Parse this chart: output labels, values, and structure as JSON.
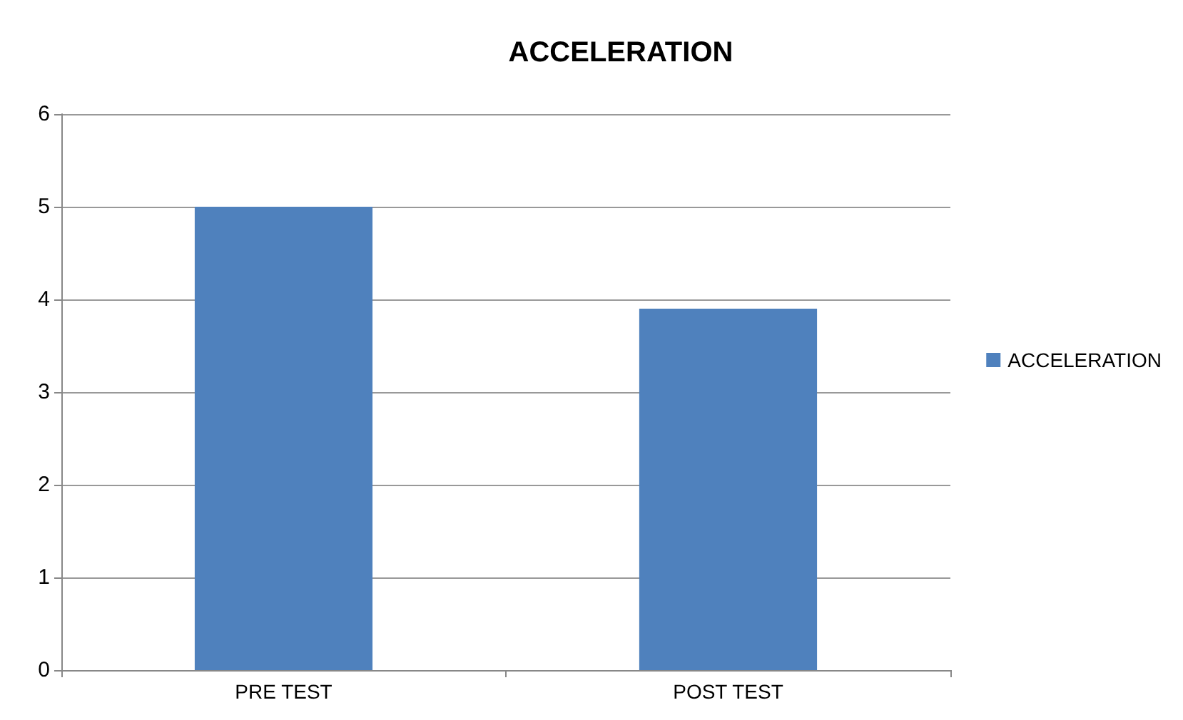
{
  "chart_data": {
    "type": "bar",
    "title": "ACCELERATION",
    "categories": [
      "PRE TEST",
      "POST TEST"
    ],
    "series": [
      {
        "name": "ACCELERATION",
        "color": "#4f81bd",
        "values": [
          5.0,
          3.9
        ]
      }
    ],
    "ylim": [
      0,
      6
    ],
    "yticks": [
      0,
      1,
      2,
      3,
      4,
      5,
      6
    ],
    "grid": "y",
    "legend": "right"
  }
}
